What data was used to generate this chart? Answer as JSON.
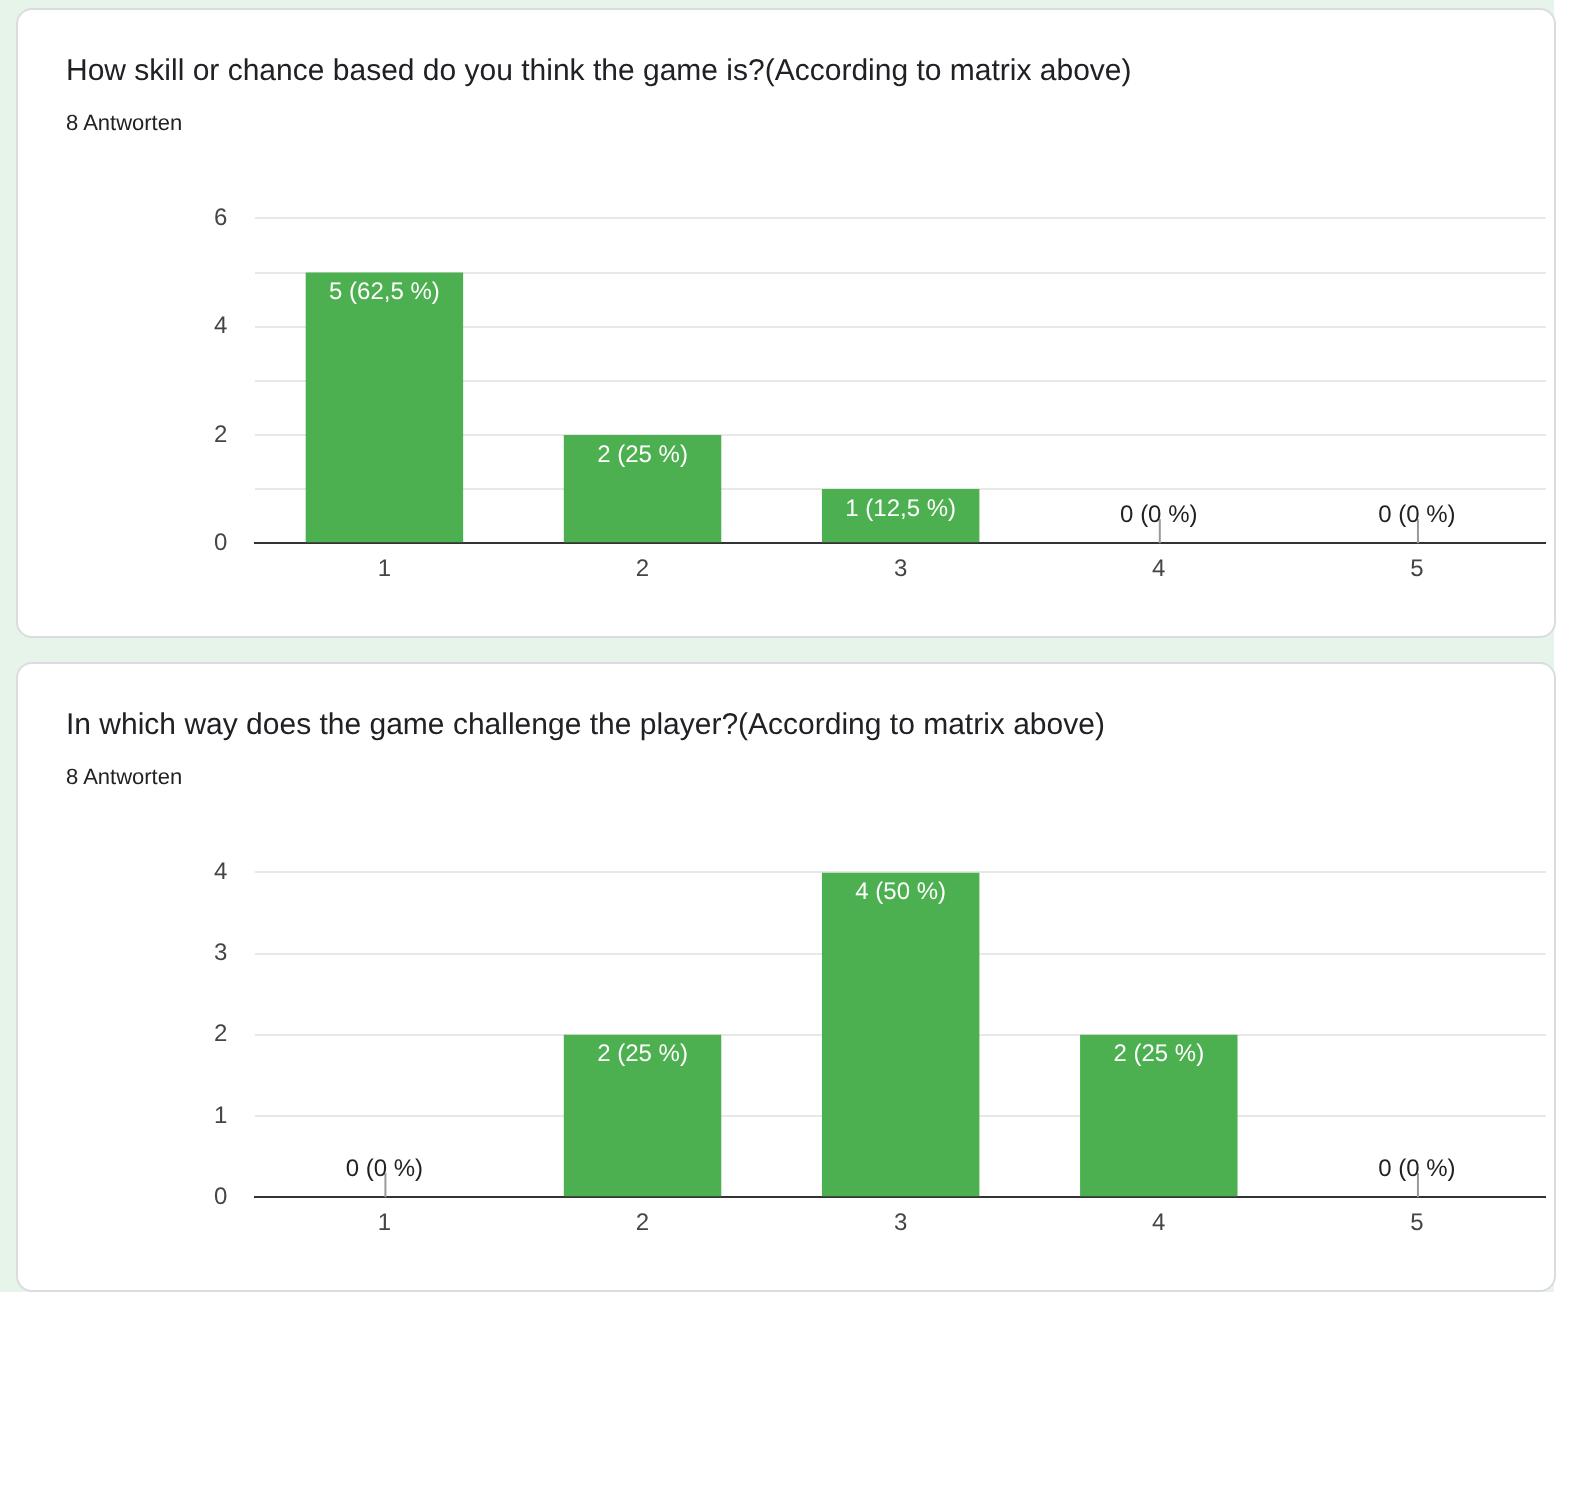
{
  "chart_data": [
    {
      "type": "bar",
      "title": "How skill or chance based do you think the game is?(According to matrix above)",
      "subtitle": "8 Antworten",
      "categories": [
        "1",
        "2",
        "3",
        "4",
        "5"
      ],
      "values": [
        5,
        2,
        1,
        0,
        0
      ],
      "value_labels": [
        "5 (62,5 %)",
        "2 (25 %)",
        "1 (12,5 %)",
        "0 (0 %)",
        "0 (0 %)"
      ],
      "color": "#4caf50",
      "ylim": [
        0,
        6
      ],
      "yticks": [
        0,
        {
          "value": 1,
          "label": null
        },
        2,
        {
          "value": 3,
          "label": null
        },
        4,
        {
          "value": 5,
          "label": null
        },
        6
      ],
      "grid": "y"
    },
    {
      "type": "bar",
      "title": "In which way does the game challenge the player?(According to matrix above)",
      "subtitle": "8 Antworten",
      "categories": [
        "1",
        "2",
        "3",
        "4",
        "5"
      ],
      "values": [
        0,
        2,
        4,
        2,
        0
      ],
      "value_labels": [
        "0 (0 %)",
        "2 (25 %)",
        "4 (50 %)",
        "2 (25 %)",
        "0 (0 %)"
      ],
      "color": "#4caf50",
      "ylim": [
        0,
        4
      ],
      "yticks": [
        0,
        1,
        2,
        3,
        4
      ],
      "grid": "y"
    }
  ]
}
